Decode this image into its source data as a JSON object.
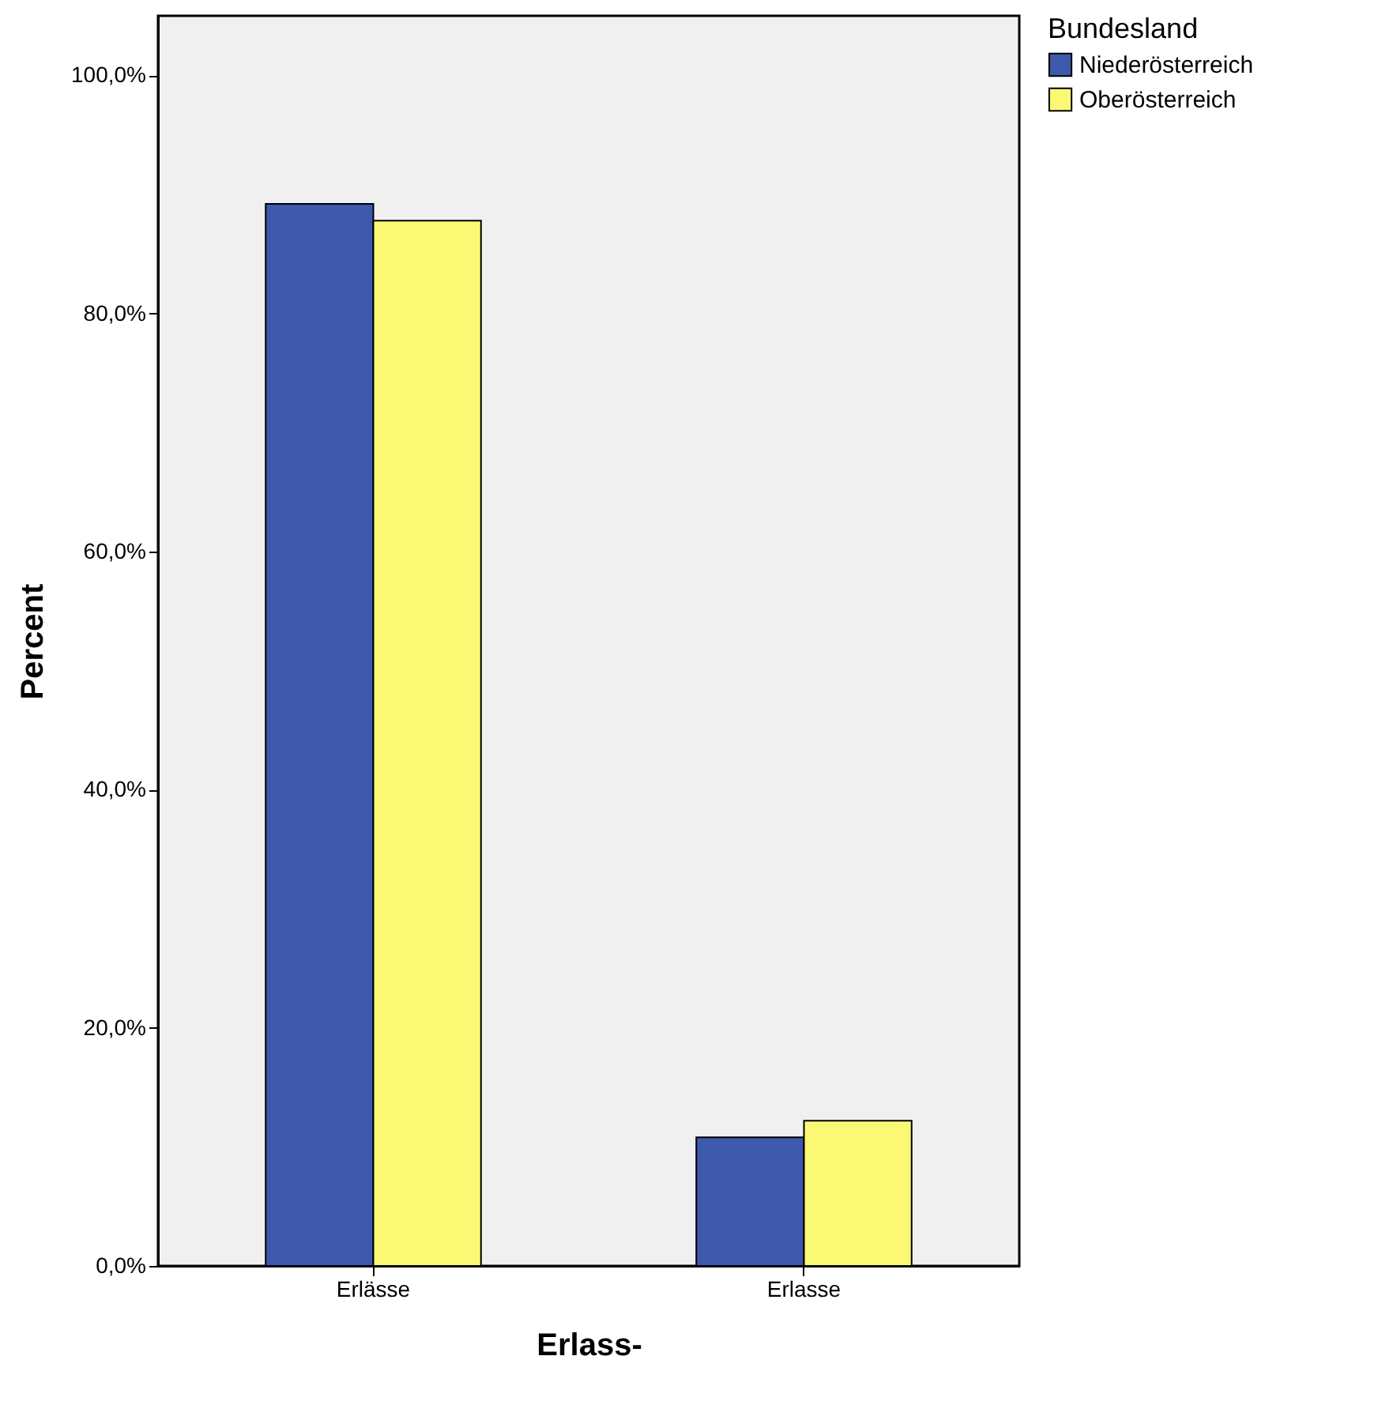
{
  "chart_data": {
    "type": "bar",
    "xlabel": "Erlass-",
    "ylabel": "Percent",
    "legend_title": "Bundesland",
    "categories": [
      "Erlässe",
      "Erlasse"
    ],
    "series": [
      {
        "name": "Niederösterreich",
        "color": "#3e58ac",
        "values": [
          89.2,
          10.8
        ]
      },
      {
        "name": "Oberösterreich",
        "color": "#fbf873",
        "values": [
          87.8,
          12.2
        ]
      }
    ],
    "ylim": [
      0,
      105
    ],
    "yticks": [
      {
        "value": 0,
        "label": "0,0%"
      },
      {
        "value": 20,
        "label": "20,0%"
      },
      {
        "value": 40,
        "label": "40,0%"
      },
      {
        "value": 60,
        "label": "60,0%"
      },
      {
        "value": 80,
        "label": "80,0%"
      },
      {
        "value": 100,
        "label": "100,0%"
      }
    ],
    "grid": false,
    "legend": "top right"
  }
}
